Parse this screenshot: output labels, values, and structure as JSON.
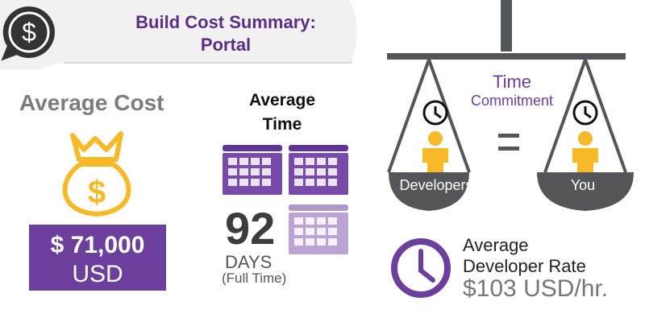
{
  "header": {
    "title_line1": "Build Cost Summary:",
    "title_line2": "Portal",
    "icon": "dollar-speech-bubble-icon"
  },
  "average_cost": {
    "heading": "Average Cost",
    "amount": "$ 71,000",
    "currency": "USD",
    "icon": "money-bag-icon"
  },
  "average_time": {
    "heading_line1": "Average",
    "heading_line2": "Time",
    "value": "92",
    "unit": "DAYS",
    "note": "(Full Time)",
    "calendars_full": 2,
    "calendars_partial": 1
  },
  "time_commitment": {
    "title_line1": "Time",
    "title_line2": "Commitment",
    "left_label": "Developers",
    "right_label": "You",
    "symbol": "="
  },
  "rate": {
    "label_line1": "Average",
    "label_line2": "Developer Rate",
    "value": "$103 USD/hr.",
    "icon": "clock-icon"
  },
  "colors": {
    "purple": "#6b3f9b",
    "dark_gray": "#4a4a4a",
    "gold": "#f7b928",
    "gray_text": "#7d7d7d"
  }
}
